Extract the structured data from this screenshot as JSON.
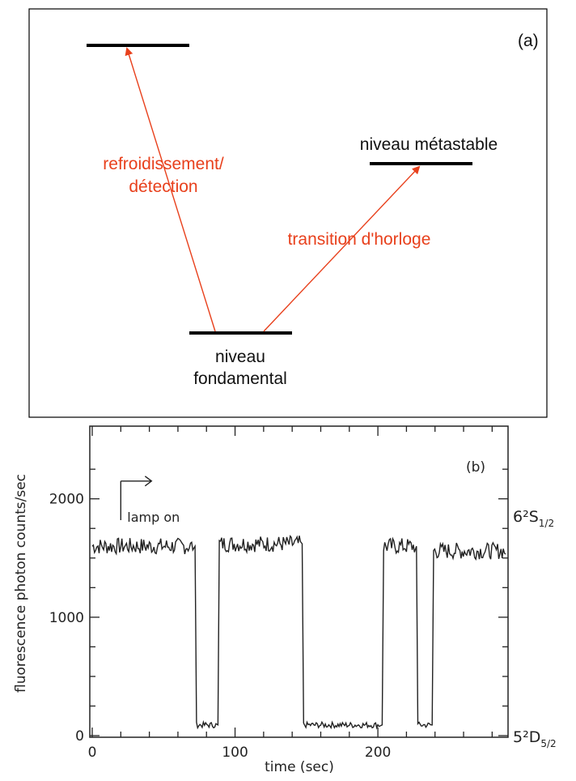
{
  "panel_a": {
    "tag": "(a)",
    "levels": {
      "upper": "",
      "metastable": "niveau métastable",
      "ground_line1": "niveau",
      "ground_line2": "fondamental"
    },
    "transitions": {
      "cooling_line1": "refroidissement/",
      "cooling_line2": "détection",
      "clock": "transition d'horloge"
    },
    "colors": {
      "arrow": "#e8401c",
      "level": "#000000"
    }
  },
  "panel_b": {
    "tag": "(b)",
    "annotation": "lamp on",
    "right_labels": {
      "upper_state": "6²S",
      "upper_sub": "1/2",
      "lower_state": "5²D",
      "lower_sub": "5/2"
    }
  },
  "chart_data": {
    "type": "line",
    "xlabel": "time (sec)",
    "ylabel": "fluorescence photon counts/sec",
    "xlim": [
      0,
      290
    ],
    "ylim": [
      0,
      2600
    ],
    "xticks": [
      0,
      100,
      200
    ],
    "yticks": [
      0,
      1000,
      2000
    ],
    "tick_labels_x": [
      "0",
      "100",
      "200"
    ],
    "tick_labels_y": [
      "0",
      "1000",
      "2000"
    ],
    "segments": [
      {
        "x0": 0,
        "x1": 71,
        "level": 1600
      },
      {
        "x0": 71,
        "x1": 73,
        "level": 1600
      },
      {
        "x0": 73,
        "x1": 87,
        "level": 90
      },
      {
        "x0": 87,
        "x1": 89,
        "level": 90
      },
      {
        "x0": 89,
        "x1": 146,
        "level": 1620
      },
      {
        "x0": 146,
        "x1": 148,
        "level": 1620
      },
      {
        "x0": 148,
        "x1": 202,
        "level": 90
      },
      {
        "x0": 202,
        "x1": 204,
        "level": 90
      },
      {
        "x0": 204,
        "x1": 226,
        "level": 1600
      },
      {
        "x0": 226,
        "x1": 228,
        "level": 1600
      },
      {
        "x0": 228,
        "x1": 237,
        "level": 90
      },
      {
        "x0": 237,
        "x1": 239,
        "level": 90
      },
      {
        "x0": 239,
        "x1": 290,
        "level": 1560
      }
    ],
    "bright_level": 1600,
    "dark_level": 90,
    "lamp_on_time": 20,
    "grid": false
  }
}
